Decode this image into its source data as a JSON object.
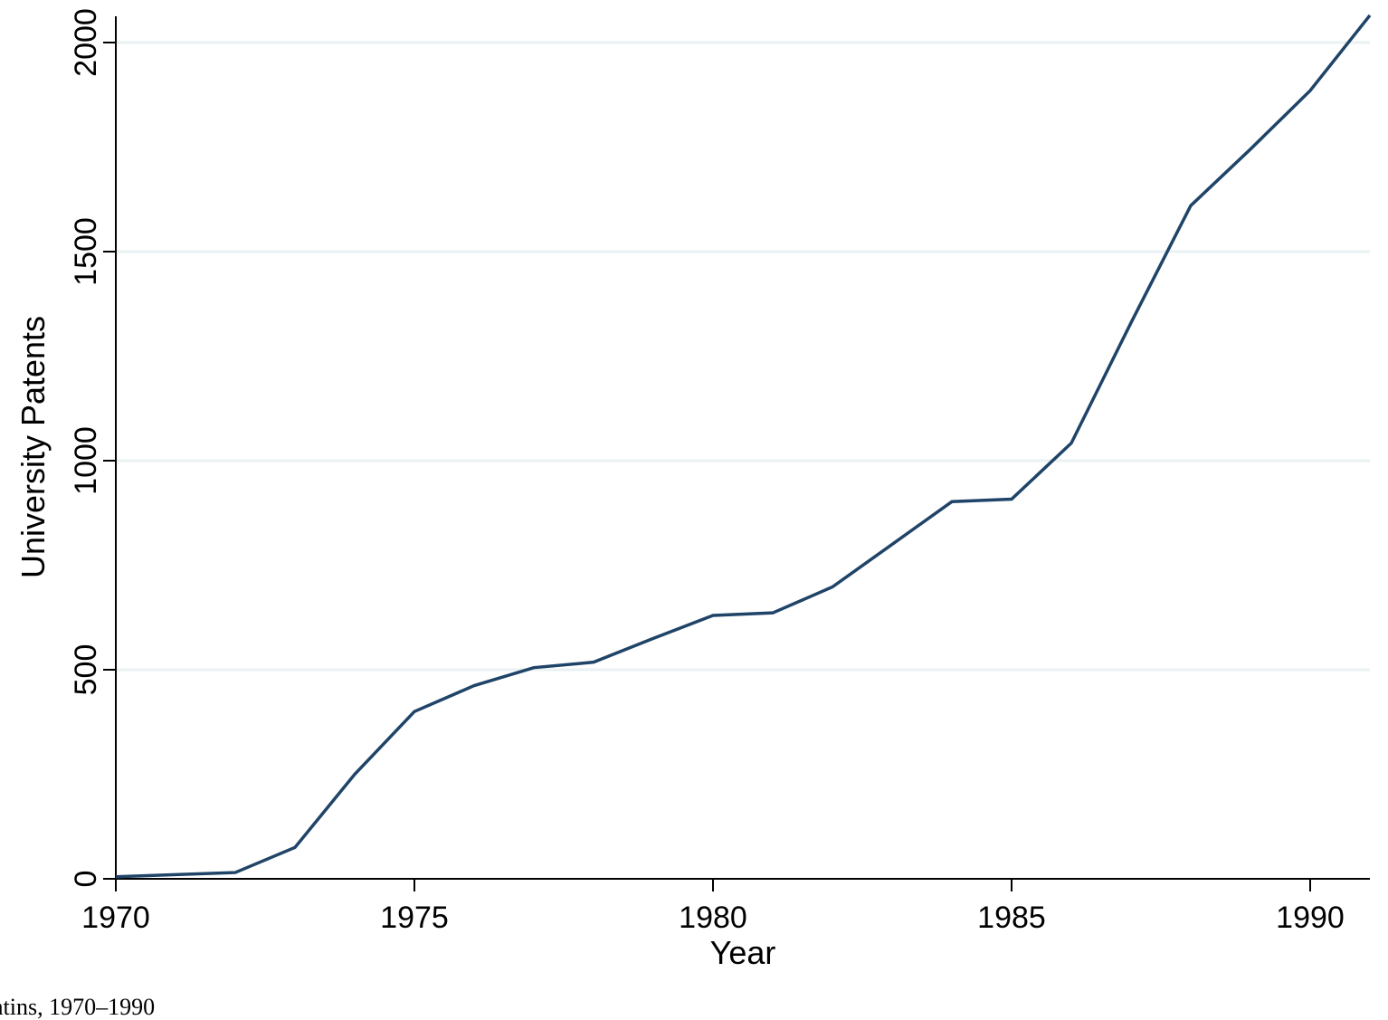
{
  "chart_data": {
    "type": "line",
    "title": "",
    "xlabel": "Year",
    "ylabel": "University Patents",
    "xlim": [
      1970,
      1991
    ],
    "ylim": [
      0,
      2060
    ],
    "xticks": [
      1970,
      1975,
      1980,
      1985,
      1990
    ],
    "yticks": [
      0,
      500,
      1000,
      1500,
      2000
    ],
    "grid": true,
    "legend": "none",
    "line_color": "#1f4468",
    "grid_color": "#eaf2f3",
    "series": [
      {
        "x": [
          1970,
          1971,
          1972,
          1973,
          1974,
          1975,
          1976,
          1977,
          1978,
          1979,
          1980,
          1981,
          1982,
          1983,
          1984,
          1985,
          1986,
          1987,
          1988,
          1989,
          1990,
          1991
        ],
        "values": [
          5,
          10,
          15,
          75,
          250,
          400,
          462,
          505,
          518,
          575,
          630,
          636,
          698,
          800,
          902,
          908,
          1042,
          1330,
          1610,
          1745,
          1885,
          2065
        ]
      }
    ]
  },
  "caption": "atins, 1970–1990"
}
